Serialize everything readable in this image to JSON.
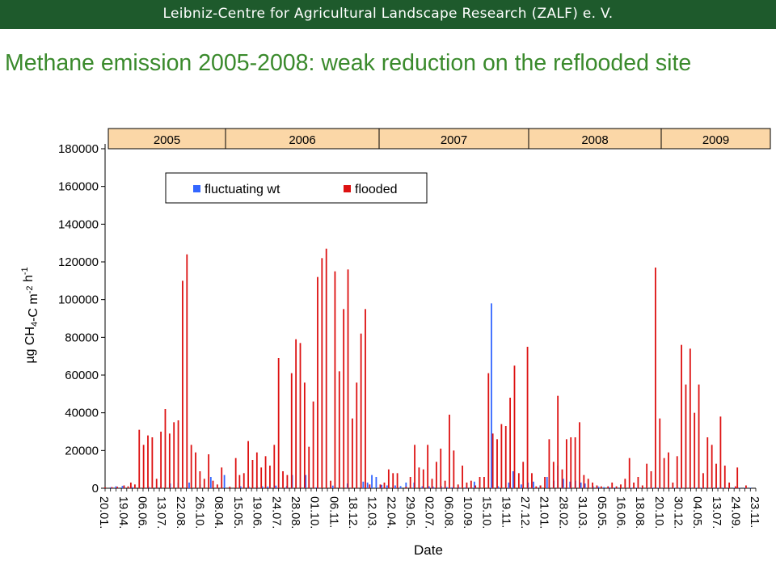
{
  "header": {
    "organization": "Leibniz-Centre for Agricultural Landscape Research (ZALF) e. V."
  },
  "slide": {
    "title": "Methane emission 2005-2008: weak reduction on the reflooded site"
  },
  "colors": {
    "banner_bg": "#1e5a2c",
    "title_text": "#3a8a2c",
    "year_band_bg": "#fbd7a7",
    "fluctuating_wt": "#3366ff",
    "flooded": "#dd1111"
  },
  "chart_data": {
    "type": "bar",
    "xlabel": "Date",
    "ylabel": "µg CH4-C m-2 h-1",
    "ylim": [
      0,
      180000
    ],
    "yticks": [
      0,
      20000,
      40000,
      60000,
      80000,
      100000,
      120000,
      140000,
      160000,
      180000
    ],
    "x_tick_labels": [
      "20.01.",
      "19.04.",
      "06.06.",
      "13.07.",
      "22.08.",
      "26.10.",
      "08.04.",
      "15.05.",
      "19.06.",
      "24.07.",
      "28.08.",
      "01.10.",
      "06.11.",
      "18.12.",
      "12.03.",
      "22.04.",
      "29.05.",
      "02.07.",
      "06.08.",
      "10.09.",
      "15.10.",
      "19.11.",
      "27.12.",
      "21.01.",
      "28.02.",
      "31.03.",
      "05.05.",
      "16.06.",
      "18.08.",
      "20.10.",
      "30.12.",
      "04.05.",
      "13.07.",
      "24.09.",
      "23.11."
    ],
    "year_bands": [
      "2005",
      "2006",
      "2007",
      "2008",
      "2009"
    ],
    "grid": false,
    "legend_position": "top-left",
    "series": [
      {
        "name": "fluctuating wt",
        "color": "#3366ff",
        "points": [
          [
            2,
            500
          ],
          [
            4,
            1000
          ],
          [
            6.4,
            1200
          ],
          [
            10,
            600
          ],
          [
            16,
            800
          ],
          [
            19,
            700
          ],
          [
            20.5,
            800
          ],
          [
            24,
            2500
          ],
          [
            27,
            3000
          ],
          [
            31,
            3000
          ],
          [
            35,
            2000
          ],
          [
            39,
            6000
          ],
          [
            44,
            7000
          ],
          [
            50,
            1000
          ],
          [
            53,
            900
          ],
          [
            56,
            1200
          ],
          [
            58,
            1000
          ],
          [
            60,
            900
          ],
          [
            63,
            1400
          ],
          [
            67,
            1100
          ],
          [
            69,
            7000
          ],
          [
            72,
            800
          ],
          [
            74,
            7000
          ],
          [
            78,
            500
          ],
          [
            84,
            1400
          ],
          [
            89.4,
            2500
          ],
          [
            95.2,
            3500
          ],
          [
            96.8,
            3000
          ],
          [
            98.4,
            7000
          ],
          [
            100,
            6000
          ],
          [
            102,
            1800
          ],
          [
            104,
            1500
          ],
          [
            107,
            1500
          ],
          [
            109,
            1100
          ],
          [
            111,
            3000
          ],
          [
            114,
            3000
          ],
          [
            117,
            1000
          ],
          [
            119.5,
            1000
          ],
          [
            121,
            800
          ],
          [
            124,
            1000
          ],
          [
            126,
            600
          ],
          [
            128,
            500
          ],
          [
            130.5,
            600
          ],
          [
            133,
            500
          ],
          [
            136.2,
            3500
          ],
          [
            142.5,
            98000
          ],
          [
            145,
            1000
          ],
          [
            148.9,
            3000
          ],
          [
            150.5,
            9000
          ],
          [
            153.5,
            2000
          ],
          [
            156,
            3000
          ],
          [
            158,
            3500
          ],
          [
            160.5,
            1500
          ],
          [
            163,
            6000
          ],
          [
            165.5,
            4000
          ],
          [
            167,
            12000
          ],
          [
            169,
            5000
          ],
          [
            171.5,
            3500
          ],
          [
            173.5,
            4000
          ],
          [
            175.5,
            3000
          ],
          [
            177,
            2500
          ],
          [
            180,
            1000
          ],
          [
            182,
            800
          ],
          [
            184,
            600
          ],
          [
            186,
            500
          ],
          [
            188,
            400
          ],
          [
            190,
            400
          ],
          [
            192,
            300
          ],
          [
            194,
            300
          ],
          [
            196,
            300
          ],
          [
            198,
            300
          ],
          [
            200,
            300
          ],
          [
            202,
            300
          ],
          [
            204,
            300
          ],
          [
            206,
            300
          ],
          [
            208,
            300
          ],
          [
            210,
            300
          ],
          [
            212,
            300
          ],
          [
            214,
            300
          ],
          [
            216,
            300
          ],
          [
            218,
            300
          ],
          [
            220,
            300
          ],
          [
            222,
            300
          ],
          [
            224,
            300
          ],
          [
            226,
            300
          ],
          [
            228,
            300
          ],
          [
            230,
            300
          ],
          [
            232,
            300
          ],
          [
            234,
            300
          ],
          [
            236,
            300
          ],
          [
            238,
            300
          ]
        ]
      },
      {
        "name": "flooded",
        "color": "#dd1111",
        "points": [
          [
            0,
            500
          ],
          [
            2.5,
            600
          ],
          [
            4.5,
            800
          ],
          [
            7,
            1500
          ],
          [
            8.5,
            1000
          ],
          [
            9.5,
            3000
          ],
          [
            11,
            2000
          ],
          [
            12.6,
            31000
          ],
          [
            14.2,
            23000
          ],
          [
            15.8,
            28000
          ],
          [
            17.4,
            27000
          ],
          [
            19,
            5000
          ],
          [
            20.6,
            30000
          ],
          [
            22.2,
            42000
          ],
          [
            23.8,
            29000
          ],
          [
            25.4,
            35000
          ],
          [
            27,
            36000
          ],
          [
            28.6,
            110000
          ],
          [
            30.2,
            124000
          ],
          [
            31.8,
            23000
          ],
          [
            33.4,
            19000
          ],
          [
            35,
            9000
          ],
          [
            36.6,
            5000
          ],
          [
            38.2,
            18000
          ],
          [
            39.8,
            4000
          ],
          [
            41.4,
            2000
          ],
          [
            43,
            11000
          ],
          [
            46,
            800
          ],
          [
            48.2,
            16000
          ],
          [
            49.6,
            7000
          ],
          [
            51.2,
            8000
          ],
          [
            52.8,
            25000
          ],
          [
            54.4,
            15000
          ],
          [
            56,
            19000
          ],
          [
            57.6,
            11000
          ],
          [
            59.2,
            17000
          ],
          [
            60.8,
            12000
          ],
          [
            62.4,
            23000
          ],
          [
            64,
            69000
          ],
          [
            65.6,
            9000
          ],
          [
            67.2,
            7000
          ],
          [
            68.8,
            61000
          ],
          [
            70.4,
            79000
          ],
          [
            72,
            77000
          ],
          [
            73.6,
            56000
          ],
          [
            75.2,
            22000
          ],
          [
            76.8,
            46000
          ],
          [
            78.4,
            112000
          ],
          [
            80,
            122000
          ],
          [
            81.6,
            127000
          ],
          [
            83.2,
            4000
          ],
          [
            84.8,
            115000
          ],
          [
            86.4,
            62000
          ],
          [
            88,
            95000
          ],
          [
            89.6,
            116000
          ],
          [
            91.2,
            37000
          ],
          [
            92.8,
            56000
          ],
          [
            94.4,
            82000
          ],
          [
            96,
            95000
          ],
          [
            97.6,
            2000
          ],
          [
            101.5,
            2000
          ],
          [
            103,
            3000
          ],
          [
            104.6,
            10000
          ],
          [
            106.2,
            8000
          ],
          [
            107.8,
            8000
          ],
          [
            111,
            800
          ],
          [
            112.6,
            6000
          ],
          [
            114.2,
            23000
          ],
          [
            115.8,
            11000
          ],
          [
            117.4,
            10000
          ],
          [
            119,
            23000
          ],
          [
            120.6,
            5000
          ],
          [
            122.2,
            14000
          ],
          [
            123.8,
            21000
          ],
          [
            125.4,
            4000
          ],
          [
            127,
            39000
          ],
          [
            128.6,
            20000
          ],
          [
            130.2,
            2000
          ],
          [
            131.8,
            12000
          ],
          [
            133.4,
            3000
          ],
          [
            135,
            4000
          ],
          [
            136.6,
            1500
          ],
          [
            138.2,
            6000
          ],
          [
            139.8,
            6000
          ],
          [
            141.4,
            61000
          ],
          [
            143,
            29000
          ],
          [
            144.6,
            26000
          ],
          [
            146.2,
            34000
          ],
          [
            147.8,
            33000
          ],
          [
            149.4,
            48000
          ],
          [
            151,
            65000
          ],
          [
            152.6,
            8000
          ],
          [
            154.2,
            14000
          ],
          [
            155.8,
            75000
          ],
          [
            157.4,
            8000
          ],
          [
            159,
            1000
          ],
          [
            160.6,
            1500
          ],
          [
            162.2,
            6000
          ],
          [
            163.8,
            26000
          ],
          [
            165.4,
            14000
          ],
          [
            167,
            49000
          ],
          [
            168.6,
            10000
          ],
          [
            170.2,
            26000
          ],
          [
            171.8,
            27000
          ],
          [
            173.4,
            27000
          ],
          [
            175,
            35000
          ],
          [
            176.6,
            7000
          ],
          [
            178.2,
            5000
          ],
          [
            179.8,
            3000
          ],
          [
            181.4,
            1500
          ],
          [
            183,
            1000
          ],
          [
            185.5,
            1000
          ],
          [
            187,
            3000
          ],
          [
            188.6,
            1000
          ],
          [
            190.2,
            2000
          ],
          [
            191.8,
            5000
          ],
          [
            193.4,
            16000
          ],
          [
            195,
            3000
          ],
          [
            196.6,
            6000
          ],
          [
            198.2,
            1500
          ],
          [
            199.8,
            13000
          ],
          [
            201.4,
            9000
          ],
          [
            203,
            117000
          ],
          [
            204.6,
            37000
          ],
          [
            206.2,
            16000
          ],
          [
            207.8,
            19000
          ],
          [
            209.4,
            3000
          ],
          [
            211,
            17000
          ],
          [
            212.6,
            76000
          ],
          [
            214.2,
            55000
          ],
          [
            215.8,
            74000
          ],
          [
            217.4,
            40000
          ],
          [
            219,
            55000
          ],
          [
            220.6,
            8000
          ],
          [
            222.2,
            27000
          ],
          [
            223.8,
            23000
          ],
          [
            225.4,
            13000
          ],
          [
            227,
            38000
          ],
          [
            228.6,
            12000
          ],
          [
            230.2,
            3000
          ],
          [
            232.5,
            1000
          ],
          [
            233.2,
            11000
          ],
          [
            236.4,
            1500
          ]
        ]
      }
    ]
  }
}
